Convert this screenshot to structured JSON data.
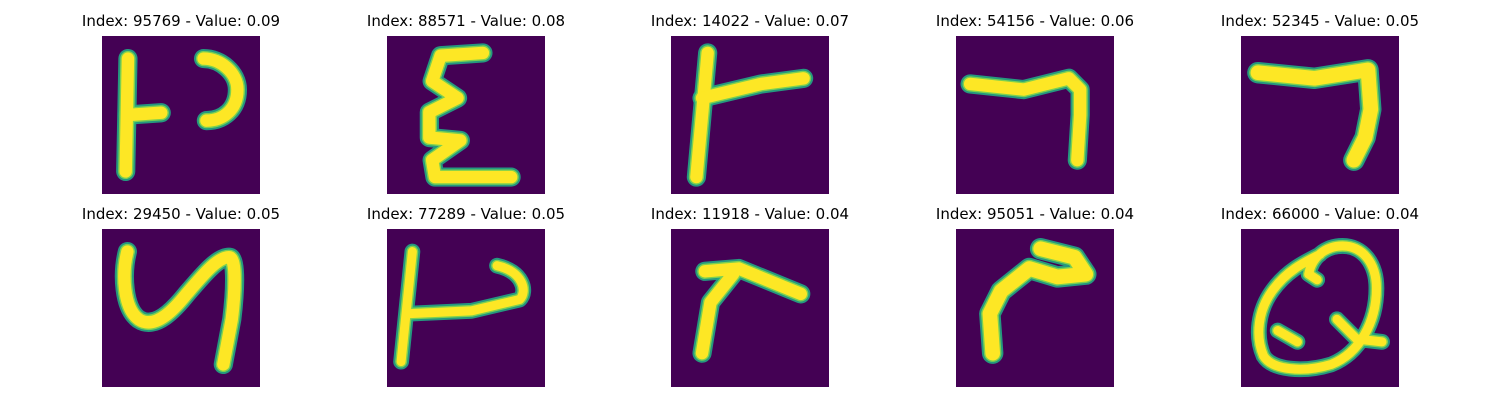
{
  "colors": {
    "background": "#440154",
    "stroke_outer": "#22a884",
    "stroke_mid": "#7ad151",
    "stroke_core": "#fde725"
  },
  "panels": [
    {
      "title": "Index: 95769 - Value: 0.09",
      "glyph": "glyph-95769"
    },
    {
      "title": "Index: 88571 - Value: 0.08",
      "glyph": "glyph-88571"
    },
    {
      "title": "Index: 14022 - Value: 0.07",
      "glyph": "glyph-14022"
    },
    {
      "title": "Index: 54156 - Value: 0.06",
      "glyph": "glyph-54156"
    },
    {
      "title": "Index: 52345 - Value: 0.05",
      "glyph": "glyph-52345"
    },
    {
      "title": "Index: 29450 - Value: 0.05",
      "glyph": "glyph-29450"
    },
    {
      "title": "Index: 77289 - Value: 0.05",
      "glyph": "glyph-77289"
    },
    {
      "title": "Index: 11918 - Value: 0.04",
      "glyph": "glyph-11918"
    },
    {
      "title": "Index: 95051 - Value: 0.04",
      "glyph": "glyph-95051"
    },
    {
      "title": "Index: 66000 - Value: 0.04",
      "glyph": "glyph-66000"
    }
  ]
}
